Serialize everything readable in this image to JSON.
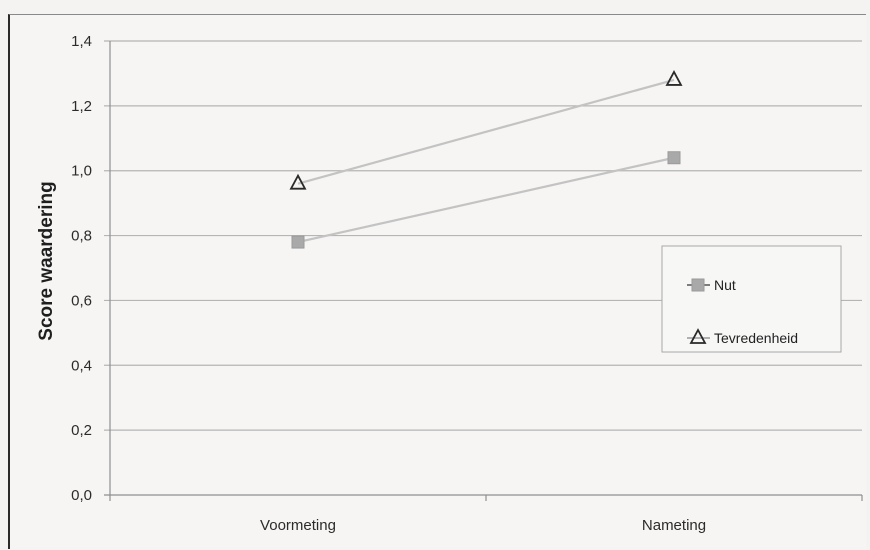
{
  "chart_data": {
    "type": "line",
    "title": "",
    "xlabel": "",
    "ylabel": "Score waardering",
    "ylim": [
      0,
      1.4
    ],
    "y_ticks": [
      "0,0",
      "0,2",
      "0,4",
      "0,6",
      "0,8",
      "1,0",
      "1,2",
      "1,4"
    ],
    "categories": [
      "Voormeting",
      "Nameting"
    ],
    "grid": "horizontal",
    "legend_position": "right",
    "series": [
      {
        "name": "Nut",
        "values": [
          0.78,
          1.04
        ],
        "marker": "square",
        "color": "#a9a9a9",
        "line_color": "#c3c3c3"
      },
      {
        "name": "Tevredenheid",
        "values": [
          0.96,
          1.28
        ],
        "marker": "triangle",
        "color": "#2a2a2a",
        "line_color": "#c3c3c3"
      }
    ]
  }
}
